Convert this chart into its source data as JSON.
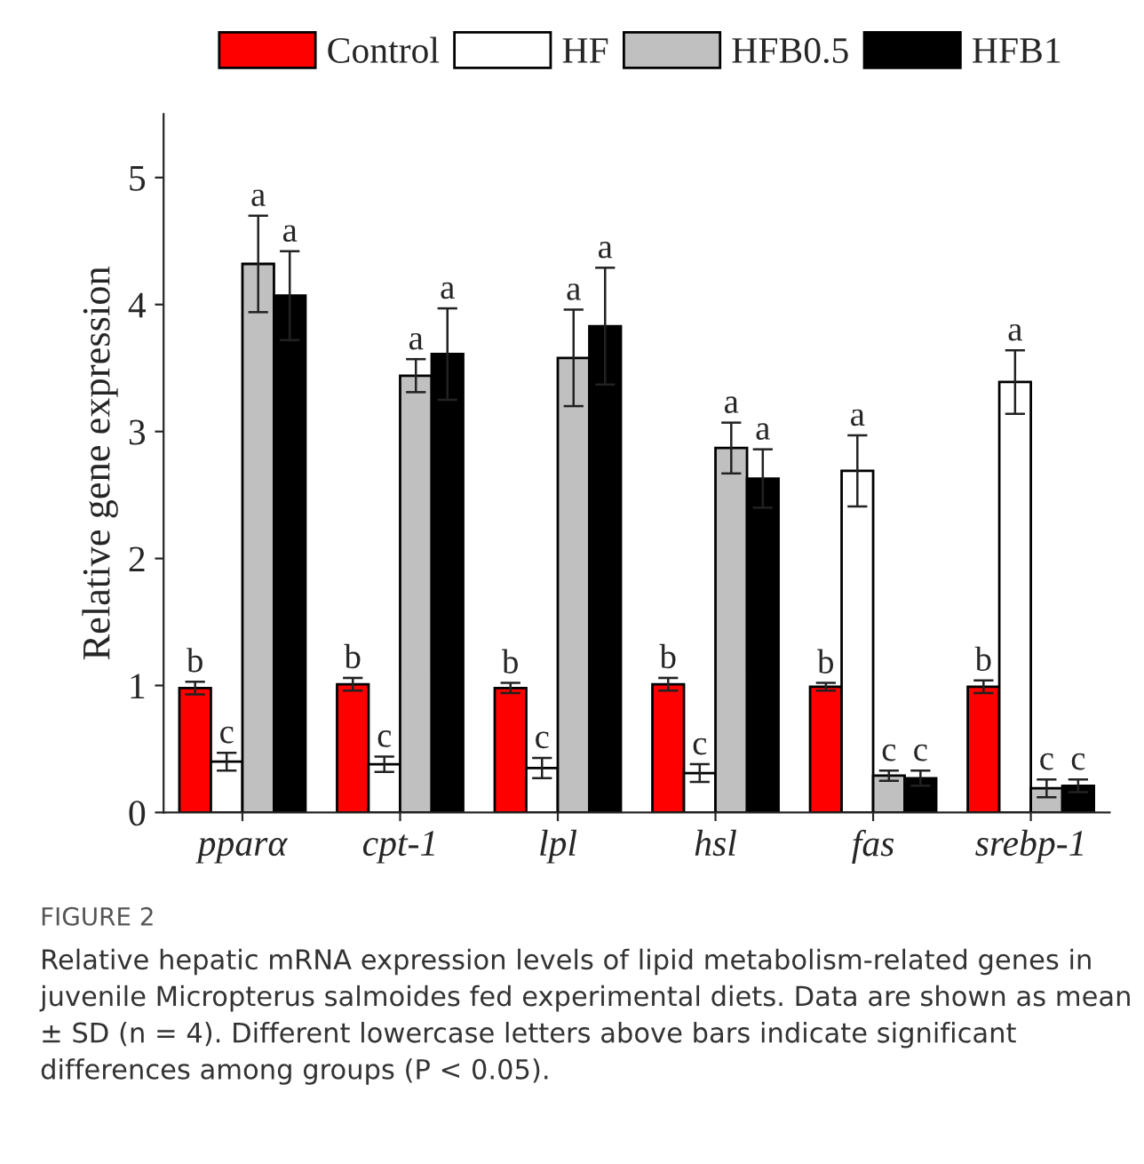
{
  "chart_data": {
    "type": "bar",
    "ylabel": "Relative gene expression",
    "categories": [
      "pparα",
      "cpt-1",
      "lpl",
      "hsl",
      "fas",
      "srebp-1"
    ],
    "series": [
      {
        "name": "Control",
        "color": "#ff0000",
        "values": [
          0.98,
          1.01,
          0.98,
          1.01,
          0.99,
          0.99
        ],
        "errors": [
          0.05,
          0.05,
          0.04,
          0.05,
          0.03,
          0.05
        ]
      },
      {
        "name": "HF",
        "color": "#ffffff",
        "values": [
          0.4,
          0.38,
          0.35,
          0.31,
          2.69,
          3.39
        ],
        "errors": [
          0.07,
          0.06,
          0.08,
          0.07,
          0.28,
          0.25
        ]
      },
      {
        "name": "HFB0.5",
        "color": "#c0c0c0",
        "values": [
          4.32,
          3.44,
          3.58,
          2.87,
          0.29,
          0.19
        ],
        "errors": [
          0.38,
          0.13,
          0.38,
          0.2,
          0.04,
          0.07
        ]
      },
      {
        "name": "HFB1",
        "color": "#000000",
        "values": [
          4.07,
          3.61,
          3.83,
          2.63,
          0.27,
          0.21
        ],
        "errors": [
          0.35,
          0.36,
          0.46,
          0.23,
          0.06,
          0.05
        ]
      }
    ],
    "ylim": [
      0,
      5.5
    ],
    "yticks": [
      0,
      1,
      2,
      3,
      4,
      5
    ],
    "legend": "top",
    "grid": false,
    "annotations": [
      "b",
      "c",
      "a",
      "a",
      "b",
      "c",
      "a",
      "a",
      "b",
      "c",
      "a",
      "a",
      "b",
      "c",
      "a",
      "a",
      "b",
      "a",
      "c",
      "c",
      "b",
      "a",
      "c",
      "c",
      "FIGURE 2",
      "Relative hepatic mRNA expression levels of lipid metabolism-related genes in juvenile Micropterus salmoides fed experimental diets. Data are shown as mean ± SD (n = 4). Different lowercase letters above bars indicate significant differences among groups (P < 0.05)."
    ]
  }
}
